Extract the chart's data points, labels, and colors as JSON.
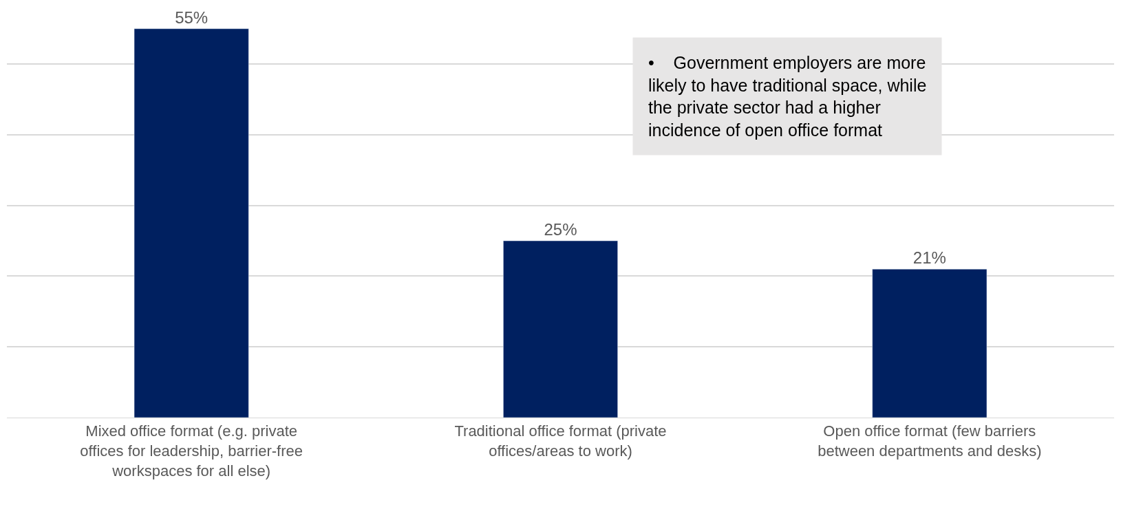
{
  "chart_data": {
    "type": "bar",
    "categories": [
      "Mixed office format (e.g. private offices for leadership, barrier-free workspaces for all else)",
      "Traditional office format (private offices/areas to work)",
      "Open office format (few barriers between departments and desks)"
    ],
    "values": [
      55,
      25,
      21
    ],
    "value_labels": [
      "55%",
      "25%",
      "21%"
    ],
    "color": "#002060",
    "tick_labels": "x",
    "grid": "y",
    "legend": false,
    "annotations": [
      "•    Government employers are more likely to have traditional space, while the private sector had a higher incidence of open office format"
    ]
  }
}
